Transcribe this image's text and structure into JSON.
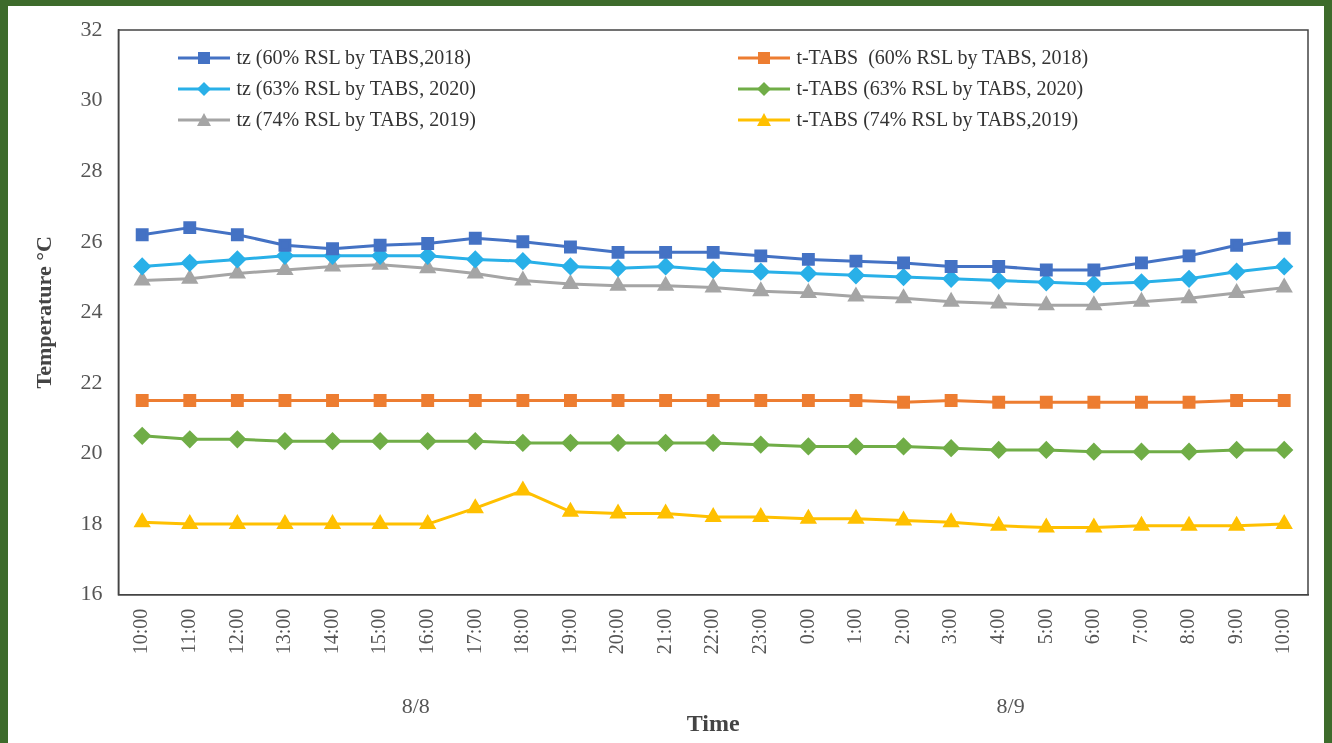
{
  "chart_data": {
    "type": "line",
    "xlabel": "Time",
    "ylabel": "Temperature °C",
    "categories": [
      "10:00",
      "11:00",
      "12:00",
      "13:00",
      "14:00",
      "15:00",
      "16:00",
      "17:00",
      "18:00",
      "19:00",
      "20:00",
      "21:00",
      "22:00",
      "23:00",
      "0:00",
      "1:00",
      "2:00",
      "3:00",
      "4:00",
      "5:00",
      "6:00",
      "7:00",
      "8:00",
      "9:00",
      "10:00"
    ],
    "series": [
      {
        "name": "tz (60% RSL by TABS,2018)",
        "color": "#4472c4",
        "marker": "square",
        "values": [
          26.2,
          26.4,
          26.2,
          25.9,
          25.8,
          25.9,
          25.95,
          26.1,
          26.0,
          25.85,
          25.7,
          25.7,
          25.7,
          25.6,
          25.5,
          25.45,
          25.4,
          25.3,
          25.3,
          25.2,
          25.2,
          25.4,
          25.6,
          25.9,
          26.1
        ]
      },
      {
        "name": "t-TABS  (60% RSL by TABS, 2018)",
        "color": "#ed7d31",
        "marker": "square",
        "values": [
          21.5,
          21.5,
          21.5,
          21.5,
          21.5,
          21.5,
          21.5,
          21.5,
          21.5,
          21.5,
          21.5,
          21.5,
          21.5,
          21.5,
          21.5,
          21.5,
          21.45,
          21.5,
          21.45,
          21.45,
          21.45,
          21.45,
          21.45,
          21.5,
          21.5
        ]
      },
      {
        "name": "tz (63% RSL by TABS, 2020)",
        "color": "#29b0e8",
        "marker": "diamond",
        "values": [
          25.3,
          25.4,
          25.5,
          25.6,
          25.6,
          25.6,
          25.6,
          25.5,
          25.45,
          25.3,
          25.25,
          25.3,
          25.2,
          25.15,
          25.1,
          25.05,
          25.0,
          24.95,
          24.9,
          24.85,
          24.8,
          24.85,
          24.95,
          25.15,
          25.3
        ]
      },
      {
        "name": "t-TABS (63% RSL by TABS, 2020)",
        "color": "#70ad47",
        "marker": "diamond",
        "values": [
          20.5,
          20.4,
          20.4,
          20.35,
          20.35,
          20.35,
          20.35,
          20.35,
          20.3,
          20.3,
          20.3,
          20.3,
          20.3,
          20.25,
          20.2,
          20.2,
          20.2,
          20.15,
          20.1,
          20.1,
          20.05,
          20.05,
          20.05,
          20.1,
          20.1
        ]
      },
      {
        "name": "tz (74% RSL by TABS, 2019)",
        "color": "#a5a5a5",
        "marker": "triangle",
        "values": [
          24.9,
          24.95,
          25.1,
          25.2,
          25.3,
          25.35,
          25.25,
          25.1,
          24.9,
          24.8,
          24.75,
          24.75,
          24.7,
          24.6,
          24.55,
          24.45,
          24.4,
          24.3,
          24.25,
          24.2,
          24.2,
          24.3,
          24.4,
          24.55,
          24.7
        ]
      },
      {
        "name": "t-TABS (74% RSL by TABS,2019)",
        "color": "#ffc000",
        "marker": "triangle",
        "values": [
          18.05,
          18.0,
          18.0,
          18.0,
          18.0,
          18.0,
          18.0,
          18.45,
          18.95,
          18.35,
          18.3,
          18.3,
          18.2,
          18.2,
          18.15,
          18.15,
          18.1,
          18.05,
          17.95,
          17.9,
          17.9,
          17.95,
          17.95,
          17.95,
          18.0
        ]
      }
    ],
    "ylim": [
      16,
      32
    ],
    "yticks": [
      16,
      18,
      20,
      22,
      24,
      26,
      28,
      30,
      32
    ],
    "grid": false,
    "legend": "top",
    "line_style": "solid",
    "annotations": [
      "8/8",
      "8/9"
    ]
  }
}
